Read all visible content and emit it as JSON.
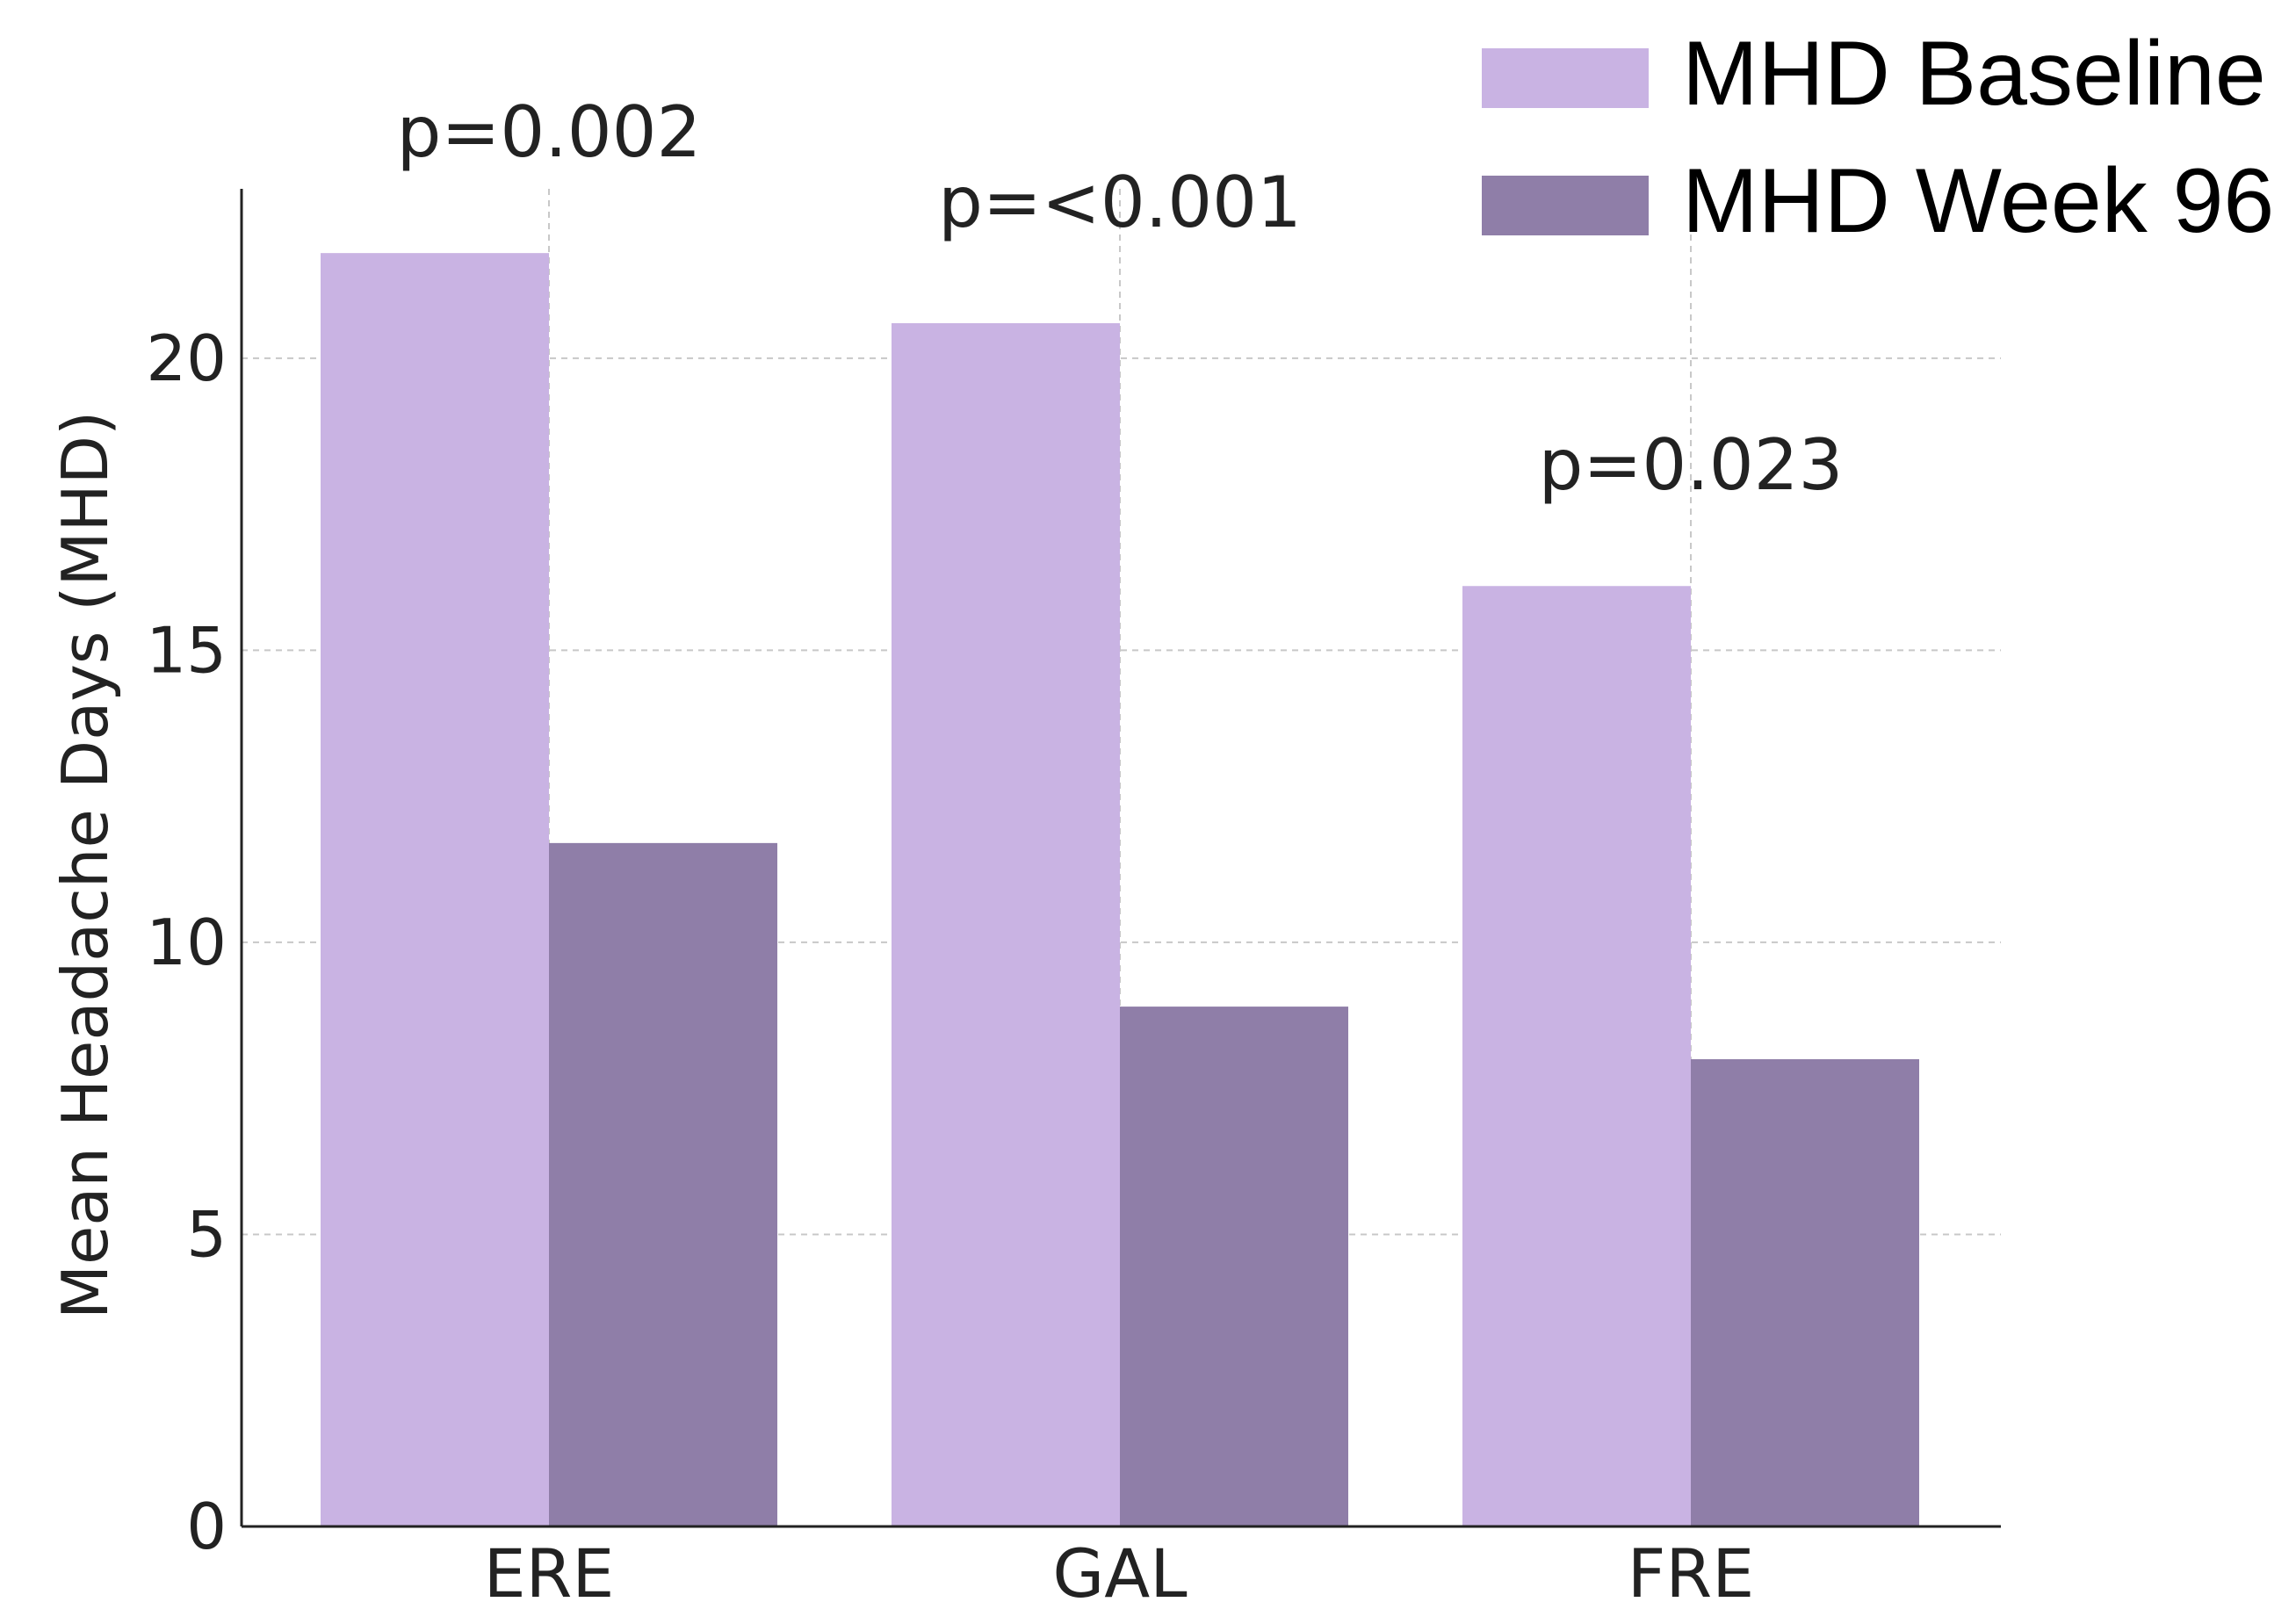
{
  "chart_data": {
    "type": "bar",
    "title": "",
    "xlabel": "",
    "ylabel": "Mean Headache Days (MHD)",
    "categories": [
      "ERE",
      "GAL",
      "FRE"
    ],
    "series": [
      {
        "name": "MHD Baseline",
        "color": "#c9b3e3",
        "values": [
          21.8,
          20.6,
          16.1
        ]
      },
      {
        "name": "MHD Week 96",
        "color": "#8f7ea8",
        "values": [
          11.7,
          8.9,
          8.0
        ]
      }
    ],
    "annotations": [
      "p=0.002",
      "p=<0.001",
      "p=0.023"
    ],
    "ylim": [
      0,
      22.9
    ],
    "yticks": [
      0,
      5,
      10,
      15,
      20
    ],
    "ytick_labels": [
      "0",
      "5",
      "10",
      "15",
      "20"
    ],
    "grid": true,
    "legend_position": "top-right"
  }
}
